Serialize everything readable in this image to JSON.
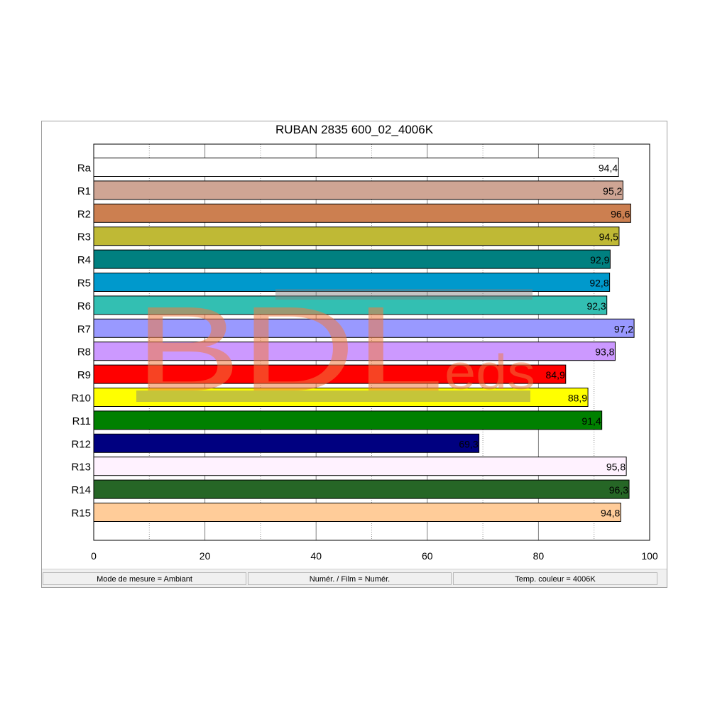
{
  "window": {
    "status": [
      "Mode de mesure = Ambiant",
      "Numér. / Film = Numér.",
      "Temp. couleur = 4006K"
    ]
  },
  "watermark": {
    "big": "BDL",
    "small": "eds"
  },
  "chart_data": {
    "type": "bar",
    "orientation": "horizontal",
    "title": "RUBAN 2835 600_02_4006K",
    "categories": [
      "Ra",
      "R1",
      "R2",
      "R3",
      "R4",
      "R5",
      "R6",
      "R7",
      "R8",
      "R9",
      "R10",
      "R11",
      "R12",
      "R13",
      "R14",
      "R15"
    ],
    "values": [
      94.4,
      95.2,
      96.6,
      94.5,
      92.9,
      92.8,
      92.3,
      97.2,
      93.8,
      84.9,
      88.9,
      91.4,
      69.3,
      95.8,
      96.3,
      94.8
    ],
    "value_labels": [
      "94,4",
      "95,2",
      "96,6",
      "94,5",
      "92,9",
      "92,8",
      "92,3",
      "97,2",
      "93,8",
      "84,9",
      "88,9",
      "91,4",
      "69,3",
      "95,8",
      "96,3",
      "94,8"
    ],
    "colors": [
      "#ffffff",
      "#cfa594",
      "#cc7f50",
      "#bfb935",
      "#008080",
      "#0099cc",
      "#33bfb2",
      "#9999ff",
      "#cc99ff",
      "#ff0000",
      "#ffff00",
      "#008000",
      "#000080",
      "#fff2ff",
      "#266626",
      "#ffcc99"
    ],
    "xlim": [
      0,
      100
    ],
    "xticks": [
      0,
      20,
      40,
      60,
      80,
      100
    ],
    "grid": "vertical",
    "legend": "none"
  }
}
